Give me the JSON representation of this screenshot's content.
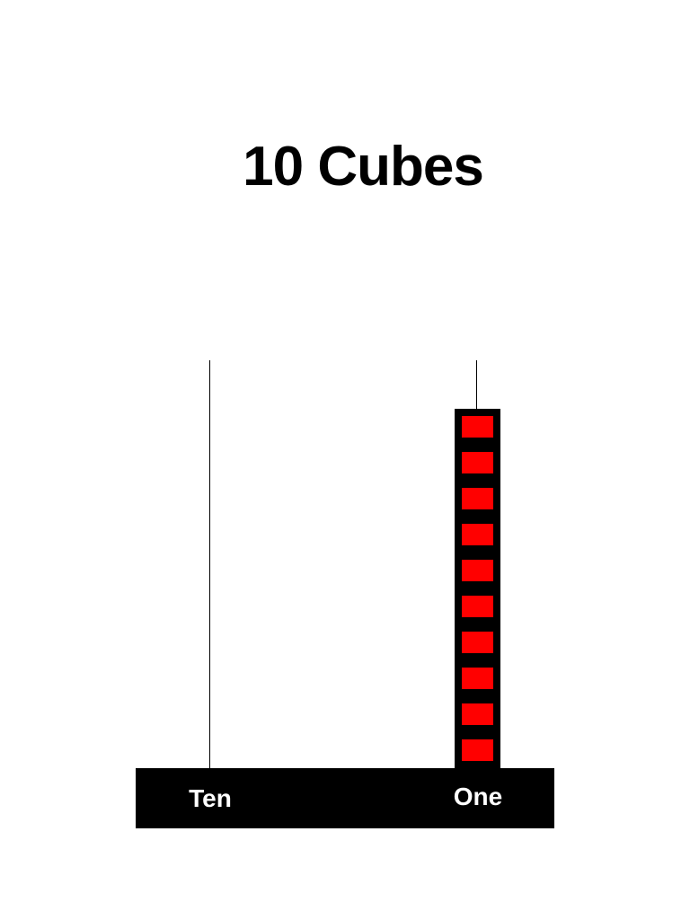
{
  "title": "10 Cubes",
  "place_value": {
    "tens": {
      "label": "Ten",
      "count": 0
    },
    "ones": {
      "label": "One",
      "count": 10
    }
  },
  "colors": {
    "cube": "#ff0000",
    "stack_background": "#000000",
    "base": "#000000",
    "label_text": "#ffffff",
    "title_text": "#000000"
  }
}
